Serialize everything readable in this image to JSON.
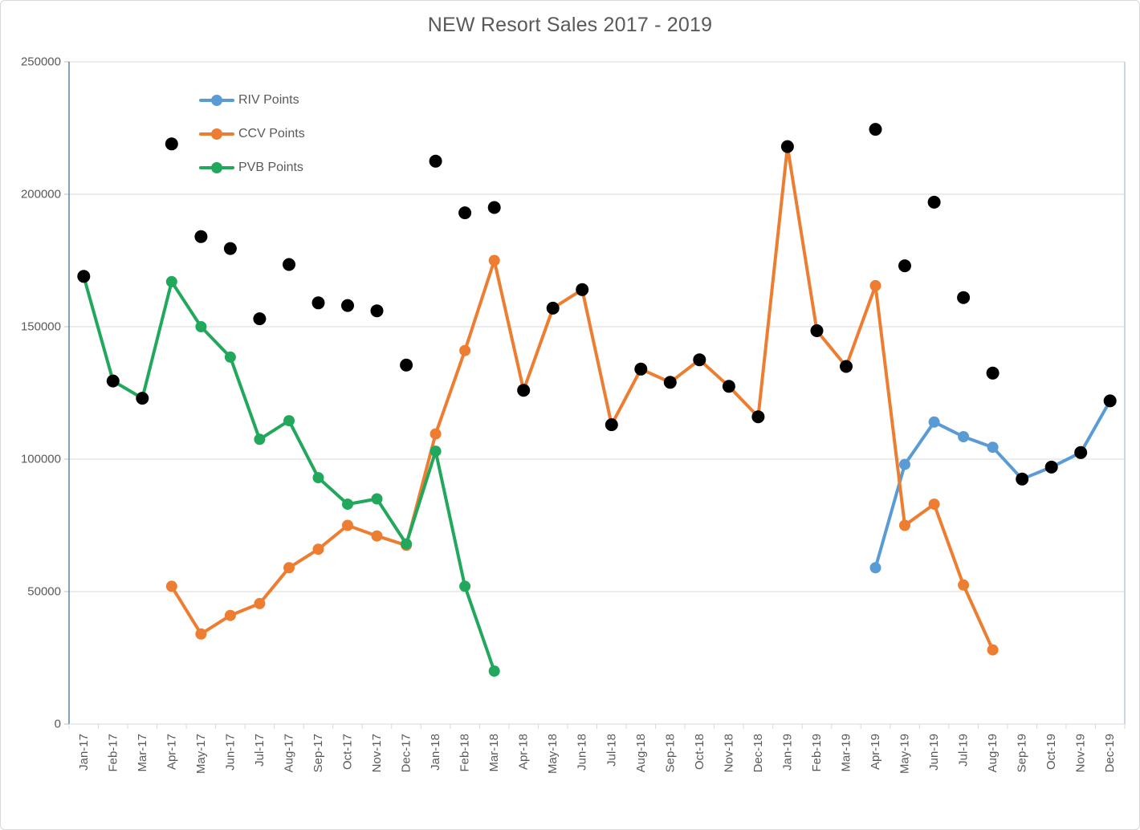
{
  "chart_data": {
    "type": "line",
    "title": "NEW Resort Sales 2017 - 2019",
    "xlabel": "",
    "ylabel": "",
    "ylim": [
      0,
      250000
    ],
    "yticks": [
      0,
      50000,
      100000,
      150000,
      200000,
      250000
    ],
    "grid": true,
    "legend_position": "inside-top-left",
    "categories": [
      "Jan-17",
      "Feb-17",
      "Mar-17",
      "Apr-17",
      "May-17",
      "Jun-17",
      "Jul-17",
      "Aug-17",
      "Sep-17",
      "Oct-17",
      "Nov-17",
      "Dec-17",
      "Jan-18",
      "Feb-18",
      "Mar-18",
      "Apr-18",
      "May-18",
      "Jun-18",
      "Jul-18",
      "Aug-18",
      "Sep-18",
      "Oct-18",
      "Nov-18",
      "Dec-18",
      "Jan-19",
      "Feb-19",
      "Mar-19",
      "Apr-19",
      "May-19",
      "Jun-19",
      "Jul-19",
      "Aug-19",
      "Sep-19",
      "Oct-19",
      "Nov-19",
      "Dec-19"
    ],
    "series": [
      {
        "name": "RIV Points",
        "color": "#5B9BD5",
        "values": [
          null,
          null,
          null,
          null,
          null,
          null,
          null,
          null,
          null,
          null,
          null,
          null,
          null,
          null,
          null,
          null,
          null,
          null,
          null,
          null,
          null,
          null,
          null,
          null,
          null,
          null,
          null,
          59000,
          98000,
          114000,
          108500,
          104500,
          92500,
          97000,
          102500,
          122000
        ]
      },
      {
        "name": "CCV Points",
        "color": "#ED7D31",
        "values": [
          null,
          null,
          null,
          52000,
          34000,
          41000,
          45500,
          59000,
          66000,
          75000,
          71000,
          67500,
          109500,
          141000,
          175000,
          126000,
          157000,
          164000,
          113000,
          134000,
          129000,
          137500,
          127500,
          116000,
          218000,
          148500,
          135000,
          165500,
          75000,
          83000,
          52500,
          28000,
          null,
          null,
          null,
          null
        ]
      },
      {
        "name": "PVB Points",
        "color": "#21A85C",
        "values": [
          169000,
          129500,
          123000,
          167000,
          150000,
          138500,
          107500,
          114500,
          93000,
          83000,
          85000,
          68000,
          103000,
          52000,
          20000,
          null,
          null,
          null,
          null,
          null,
          null,
          null,
          null,
          null,
          null,
          null,
          null,
          null,
          null,
          null,
          null,
          null,
          null,
          null,
          null,
          null
        ]
      }
    ],
    "scatter_series": {
      "color": "#000000",
      "values": [
        169000,
        129500,
        123000,
        219000,
        184000,
        179500,
        153000,
        173500,
        159000,
        158000,
        156000,
        135500,
        212500,
        193000,
        195000,
        126000,
        157000,
        164000,
        113000,
        134000,
        129000,
        137500,
        127500,
        116000,
        218000,
        148500,
        135000,
        224500,
        173000,
        197000,
        161000,
        132500,
        92500,
        97000,
        102500,
        122000
      ]
    },
    "palette": {
      "text": "#595959",
      "gridline": "#D9D9D9",
      "y_axis_line": "#41719C",
      "x_axis_line": "#D9D9D9",
      "right_border": "#A9C4DE",
      "tick": "#BFBFBF",
      "background": "#FFFFFF",
      "frame_border": "#D9D9D9"
    }
  }
}
